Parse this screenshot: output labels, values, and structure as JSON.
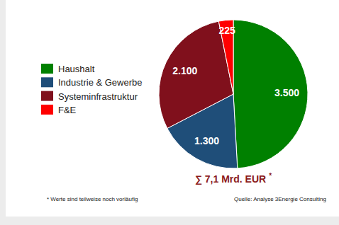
{
  "chart_data": {
    "type": "pie",
    "categories": [
      "Haushalt",
      "Industrie & Gewerbe",
      "Systeminfrastruktur",
      "F&E"
    ],
    "values": [
      3500,
      1300,
      2100,
      225
    ],
    "value_labels": [
      "3.500",
      "1.300",
      "2.100",
      "225"
    ],
    "colors": [
      "#008000",
      "#1f4e79",
      "#80101c",
      "#ff0000"
    ],
    "data_labels": true,
    "legend": "left",
    "total": {
      "text": "∑ 7,1 Mrd. EUR",
      "mark": "*"
    },
    "footnote": "* Werte sind teilweise noch vorläufig",
    "source": "Quelle: Analyse 3Energie Consulting"
  }
}
